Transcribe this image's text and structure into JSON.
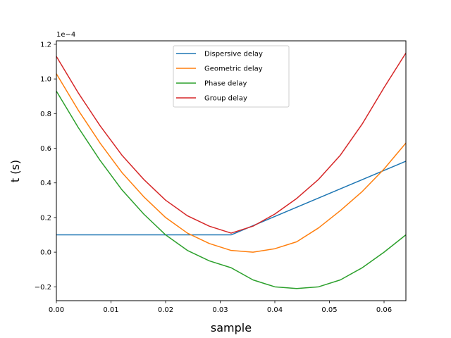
{
  "chart_data": {
    "type": "line",
    "xlabel": "sample",
    "ylabel": "t (s)",
    "y_offset_label": "1e−4",
    "xlim": [
      0,
      0.064
    ],
    "ylim": [
      -0.28,
      1.22
    ],
    "y_scale_note": "values shown in units of 1e-4 s",
    "xticks": [
      0.0,
      0.01,
      0.02,
      0.03,
      0.04,
      0.05,
      0.06
    ],
    "xtick_labels": [
      "0.00",
      "0.01",
      "0.02",
      "0.03",
      "0.04",
      "0.05",
      "0.06"
    ],
    "yticks": [
      -0.2,
      0.0,
      0.2,
      0.4,
      0.6,
      0.8,
      1.0,
      1.2
    ],
    "ytick_labels": [
      "−0.2",
      "0.0",
      "0.2",
      "0.4",
      "0.6",
      "0.8",
      "1.0",
      "1.2"
    ],
    "grid": false,
    "legend_position": "top-center",
    "series": [
      {
        "name": "Dispersive delay",
        "color": "#1f77b4",
        "x": [
          0.0,
          0.032,
          0.064
        ],
        "y": [
          0.1,
          0.1,
          0.525
        ]
      },
      {
        "name": "Geometric delay",
        "color": "#ff7f0e",
        "x": [
          0.0,
          0.004,
          0.008,
          0.012,
          0.016,
          0.02,
          0.024,
          0.028,
          0.032,
          0.036,
          0.04,
          0.044,
          0.048,
          0.052,
          0.056,
          0.06,
          0.064
        ],
        "y": [
          1.03,
          0.82,
          0.63,
          0.46,
          0.32,
          0.2,
          0.11,
          0.05,
          0.01,
          0.0,
          0.02,
          0.06,
          0.14,
          0.24,
          0.35,
          0.48,
          0.63
        ]
      },
      {
        "name": "Phase delay",
        "color": "#2ca02c",
        "x": [
          0.0,
          0.004,
          0.008,
          0.012,
          0.016,
          0.02,
          0.024,
          0.028,
          0.032,
          0.036,
          0.04,
          0.044,
          0.048,
          0.052,
          0.056,
          0.06,
          0.064
        ],
        "y": [
          0.93,
          0.72,
          0.53,
          0.36,
          0.22,
          0.1,
          0.01,
          -0.05,
          -0.09,
          -0.16,
          -0.2,
          -0.21,
          -0.2,
          -0.16,
          -0.09,
          0.0,
          0.1
        ]
      },
      {
        "name": "Group delay",
        "color": "#d62728",
        "x": [
          0.0,
          0.004,
          0.008,
          0.012,
          0.016,
          0.02,
          0.024,
          0.028,
          0.032,
          0.036,
          0.04,
          0.044,
          0.048,
          0.052,
          0.056,
          0.06,
          0.064
        ],
        "y": [
          1.13,
          0.92,
          0.73,
          0.56,
          0.42,
          0.3,
          0.21,
          0.15,
          0.11,
          0.15,
          0.22,
          0.31,
          0.42,
          0.56,
          0.74,
          0.95,
          1.15
        ]
      }
    ]
  }
}
